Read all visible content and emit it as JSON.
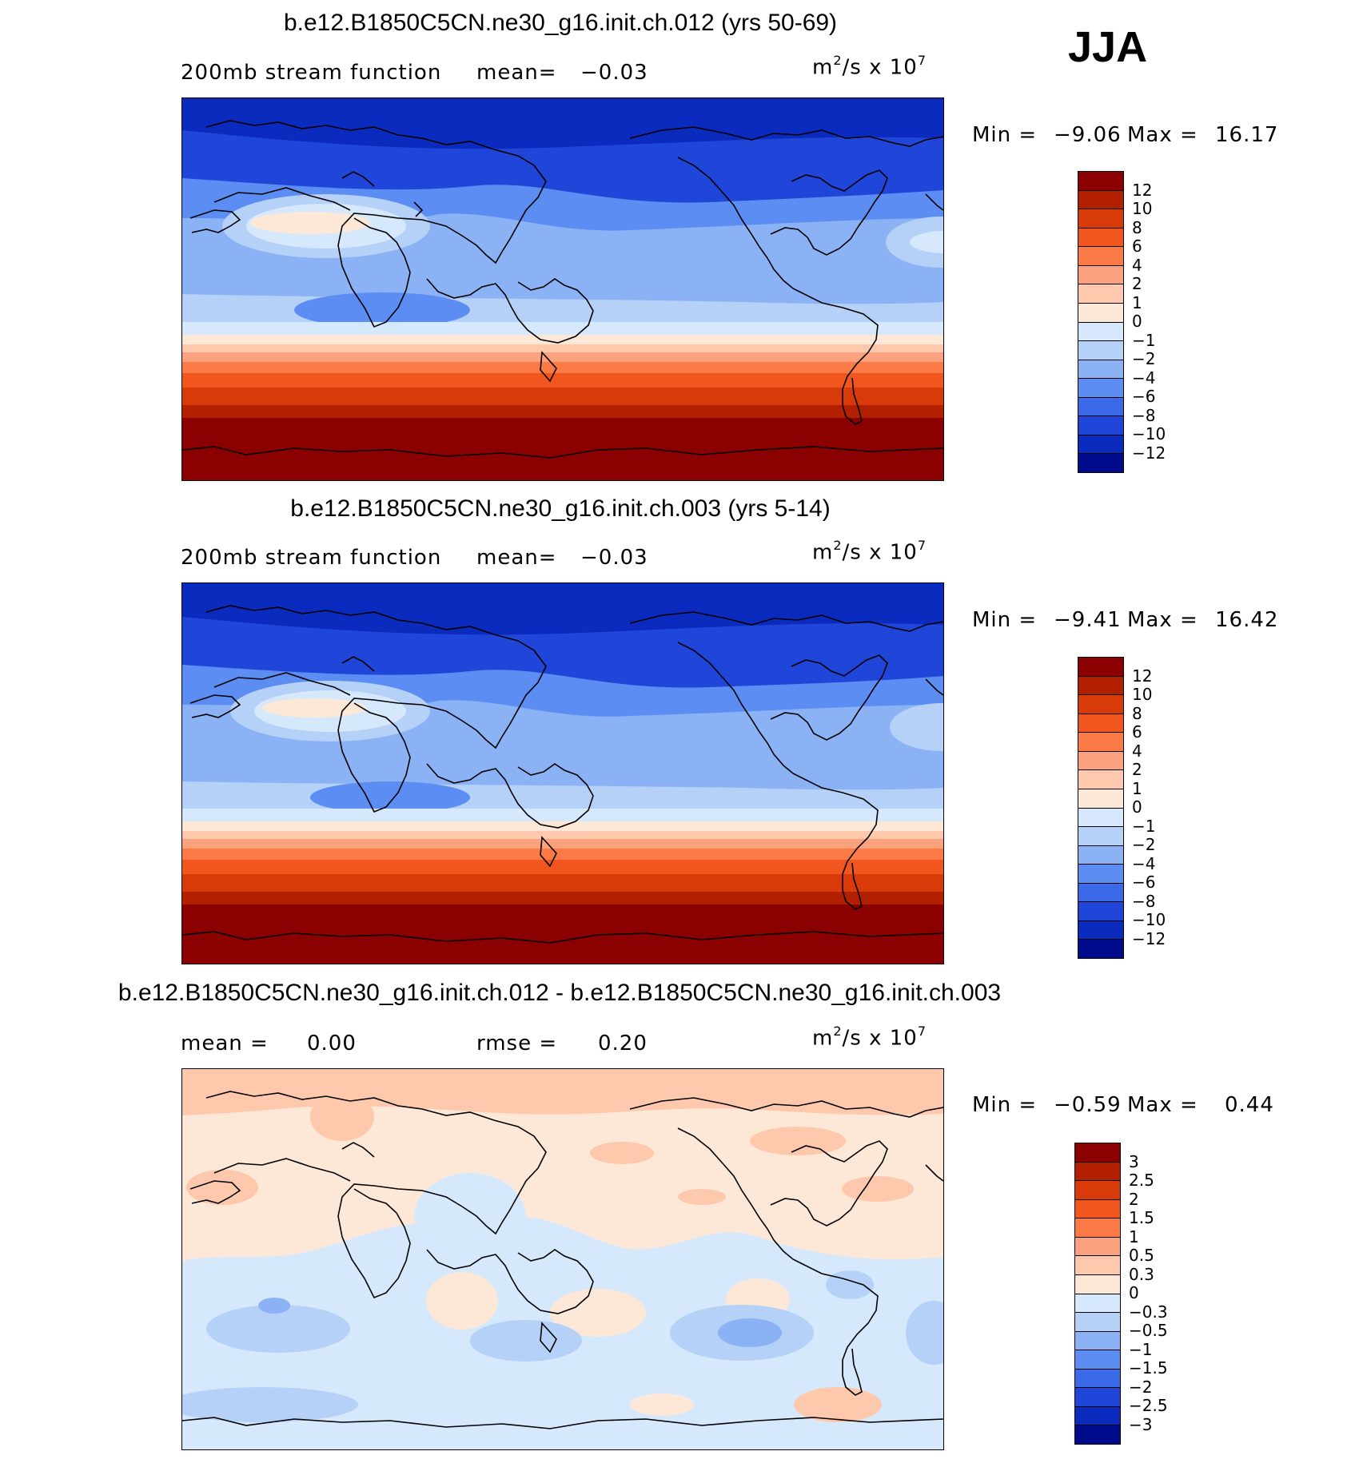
{
  "season": "JJA",
  "panels": [
    {
      "title": "b.e12.B1850C5CN.ne30_g16.init.ch.012 (yrs 50-69)",
      "left_label": "200mb stream function",
      "mean_label": "mean=",
      "mean_value": "−0.03",
      "units_base": "m",
      "units_exp1": "2",
      "units_mid": "/s x 10",
      "units_exp2": "7",
      "min_label": "Min =",
      "min_value": "−9.06",
      "max_label": "Max =",
      "max_value": "16.17",
      "colorbar": [
        "12",
        "10",
        "8",
        "6",
        "4",
        "2",
        "1",
        "0",
        "−1",
        "−2",
        "−4",
        "−6",
        "−8",
        "−10",
        "−12"
      ]
    },
    {
      "title": "b.e12.B1850C5CN.ne30_g16.init.ch.003 (yrs 5-14)",
      "left_label": "200mb stream function",
      "mean_label": "mean=",
      "mean_value": "−0.03",
      "units_base": "m",
      "units_exp1": "2",
      "units_mid": "/s x 10",
      "units_exp2": "7",
      "min_label": "Min =",
      "min_value": "−9.41",
      "max_label": "Max =",
      "max_value": "16.42",
      "colorbar": [
        "12",
        "10",
        "8",
        "6",
        "4",
        "2",
        "1",
        "0",
        "−1",
        "−2",
        "−4",
        "−6",
        "−8",
        "−10",
        "−12"
      ]
    },
    {
      "title": "b.e12.B1850C5CN.ne30_g16.init.ch.012 - b.e12.B1850C5CN.ne30_g16.init.ch.003",
      "mean_label": "mean =",
      "mean_value": "0.00",
      "rmse_label": "rmse =",
      "rmse_value": "0.20",
      "units_base": "m",
      "units_exp1": "2",
      "units_mid": "/s x 10",
      "units_exp2": "7",
      "min_label": "Min =",
      "min_value": "−0.59",
      "max_label": "Max =",
      "max_value": "0.44",
      "colorbar": [
        "3",
        "2.5",
        "2",
        "1.5",
        "1",
        "0.5",
        "0.3",
        "0",
        "−0.3",
        "−0.5",
        "−1",
        "−1.5",
        "−2",
        "−2.5",
        "−3"
      ]
    }
  ],
  "colors": {
    "palette": [
      "#8b0000",
      "#b22000",
      "#d83a0a",
      "#f2561f",
      "#fb7a45",
      "#fca17d",
      "#fdc8ac",
      "#fde8d8",
      "#d6e8fb",
      "#b6d1f7",
      "#8ab2f5",
      "#5c8df2",
      "#3a6ae8",
      "#1f46d8",
      "#0a2bbd",
      "#000c8b"
    ],
    "coast": "#000000"
  }
}
